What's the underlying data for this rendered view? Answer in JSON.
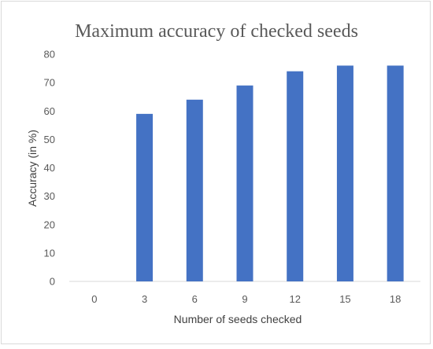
{
  "chart_data": {
    "type": "bar",
    "title": "Maximum accuracy of checked seeds",
    "xlabel": "Number of seeds checked",
    "ylabel": "Accuracy (in %)",
    "categories": [
      "0",
      "3",
      "6",
      "9",
      "12",
      "15",
      "18"
    ],
    "values": [
      0,
      59,
      64,
      69,
      74,
      76,
      76
    ],
    "ylim": [
      0,
      80
    ],
    "yticks": [
      "0",
      "10",
      "20",
      "30",
      "40",
      "50",
      "60",
      "70",
      "80"
    ],
    "grid": false,
    "legend": "none",
    "colors": {
      "bar": "#4472c4",
      "text": "#595959",
      "border": "#d9d9d9"
    }
  }
}
